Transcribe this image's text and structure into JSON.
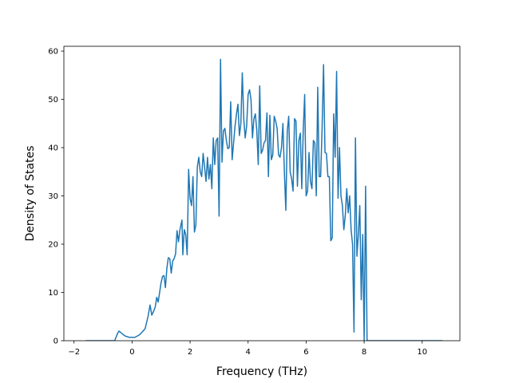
{
  "chart_data": {
    "type": "line",
    "xlabel": "Frequency (THz)",
    "ylabel": "Density of States",
    "xlim": [
      -2.35,
      11.3
    ],
    "ylim": [
      0,
      61
    ],
    "xticks": [
      -2,
      0,
      2,
      4,
      6,
      8,
      10
    ],
    "yticks": [
      0,
      10,
      20,
      30,
      40,
      50,
      60
    ],
    "x_tick_labels": [
      "−2",
      "0",
      "2",
      "4",
      "6",
      "8",
      "10"
    ],
    "y_tick_labels": [
      "0",
      "10",
      "20",
      "30",
      "40",
      "50",
      "60"
    ],
    "grid": false,
    "series": [
      {
        "color": "#1f77b4",
        "points": [
          [
            -1.6,
            0
          ],
          [
            -0.6,
            0
          ],
          [
            -0.5,
            1.5
          ],
          [
            -0.45,
            2.0
          ],
          [
            -0.35,
            1.5
          ],
          [
            -0.25,
            1.0
          ],
          [
            -0.1,
            0.7
          ],
          [
            0.1,
            0.7
          ],
          [
            0.25,
            1.2
          ],
          [
            0.35,
            1.8
          ],
          [
            0.45,
            2.5
          ],
          [
            0.55,
            5.0
          ],
          [
            0.62,
            7.4
          ],
          [
            0.68,
            5.3
          ],
          [
            0.75,
            6.2
          ],
          [
            0.8,
            7.0
          ],
          [
            0.85,
            9.0
          ],
          [
            0.9,
            8.0
          ],
          [
            1.0,
            12.0
          ],
          [
            1.05,
            13.3
          ],
          [
            1.1,
            13.5
          ],
          [
            1.15,
            11.0
          ],
          [
            1.2,
            15.0
          ],
          [
            1.25,
            17.2
          ],
          [
            1.3,
            17.0
          ],
          [
            1.35,
            14.0
          ],
          [
            1.4,
            16.5
          ],
          [
            1.45,
            17.0
          ],
          [
            1.5,
            18.0
          ],
          [
            1.55,
            22.8
          ],
          [
            1.6,
            20.5
          ],
          [
            1.65,
            23.0
          ],
          [
            1.72,
            25.0
          ],
          [
            1.75,
            17.8
          ],
          [
            1.8,
            23.0
          ],
          [
            1.85,
            22.0
          ],
          [
            1.9,
            17.8
          ],
          [
            1.95,
            35.5
          ],
          [
            2.0,
            29.5
          ],
          [
            2.05,
            28.0
          ],
          [
            2.1,
            34.0
          ],
          [
            2.15,
            22.5
          ],
          [
            2.2,
            24.0
          ],
          [
            2.25,
            36.0
          ],
          [
            2.3,
            38.0
          ],
          [
            2.35,
            35.0
          ],
          [
            2.4,
            34.0
          ],
          [
            2.45,
            38.8
          ],
          [
            2.5,
            36.0
          ],
          [
            2.55,
            33.0
          ],
          [
            2.6,
            38.0
          ],
          [
            2.65,
            33.5
          ],
          [
            2.7,
            36.5
          ],
          [
            2.75,
            31.5
          ],
          [
            2.8,
            42.0
          ],
          [
            2.85,
            36.5
          ],
          [
            2.9,
            41.5
          ],
          [
            2.95,
            42.0
          ],
          [
            3.0,
            25.8
          ],
          [
            3.05,
            58.3
          ],
          [
            3.1,
            37.0
          ],
          [
            3.15,
            43.5
          ],
          [
            3.2,
            44.0
          ],
          [
            3.25,
            41.5
          ],
          [
            3.3,
            39.8
          ],
          [
            3.35,
            40.0
          ],
          [
            3.4,
            49.5
          ],
          [
            3.45,
            37.5
          ],
          [
            3.5,
            41.0
          ],
          [
            3.55,
            44.5
          ],
          [
            3.6,
            47.0
          ],
          [
            3.65,
            49.0
          ],
          [
            3.7,
            42.5
          ],
          [
            3.75,
            45.0
          ],
          [
            3.8,
            55.5
          ],
          [
            3.85,
            46.0
          ],
          [
            3.9,
            42.0
          ],
          [
            3.95,
            44.5
          ],
          [
            4.0,
            51.0
          ],
          [
            4.05,
            52.0
          ],
          [
            4.1,
            50.0
          ],
          [
            4.15,
            42.0
          ],
          [
            4.2,
            46.0
          ],
          [
            4.25,
            47.0
          ],
          [
            4.3,
            43.5
          ],
          [
            4.35,
            36.5
          ],
          [
            4.4,
            52.8
          ],
          [
            4.45,
            38.8
          ],
          [
            4.5,
            39.5
          ],
          [
            4.55,
            41.0
          ],
          [
            4.6,
            41.5
          ],
          [
            4.65,
            47.2
          ],
          [
            4.7,
            34.0
          ],
          [
            4.75,
            46.7
          ],
          [
            4.8,
            37.5
          ],
          [
            4.85,
            38.5
          ],
          [
            4.9,
            46.5
          ],
          [
            4.95,
            45.5
          ],
          [
            5.0,
            44.0
          ],
          [
            5.05,
            38.5
          ],
          [
            5.1,
            38.0
          ],
          [
            5.15,
            40.0
          ],
          [
            5.2,
            45.0
          ],
          [
            5.25,
            35.0
          ],
          [
            5.3,
            27.0
          ],
          [
            5.35,
            43.5
          ],
          [
            5.4,
            46.5
          ],
          [
            5.45,
            35.0
          ],
          [
            5.5,
            33.5
          ],
          [
            5.55,
            31.0
          ],
          [
            5.6,
            46.0
          ],
          [
            5.65,
            45.5
          ],
          [
            5.7,
            32.0
          ],
          [
            5.75,
            41.5
          ],
          [
            5.8,
            43.0
          ],
          [
            5.85,
            31.5
          ],
          [
            5.9,
            43.5
          ],
          [
            5.95,
            51.0
          ],
          [
            6.0,
            30.0
          ],
          [
            6.05,
            31.0
          ],
          [
            6.1,
            39.0
          ],
          [
            6.15,
            33.0
          ],
          [
            6.2,
            31.5
          ],
          [
            6.25,
            41.5
          ],
          [
            6.3,
            41.0
          ],
          [
            6.35,
            30.0
          ],
          [
            6.4,
            52.5
          ],
          [
            6.45,
            34.0
          ],
          [
            6.5,
            34.0
          ],
          [
            6.55,
            44.0
          ],
          [
            6.6,
            57.2
          ],
          [
            6.65,
            39.0
          ],
          [
            6.7,
            38.8
          ],
          [
            6.75,
            34.0
          ],
          [
            6.8,
            34.0
          ],
          [
            6.85,
            20.7
          ],
          [
            6.9,
            21.3
          ],
          [
            6.95,
            47.0
          ],
          [
            7.0,
            38.0
          ],
          [
            7.05,
            55.8
          ],
          [
            7.1,
            29.5
          ],
          [
            7.15,
            40.0
          ],
          [
            7.2,
            30.0
          ],
          [
            7.25,
            28.0
          ],
          [
            7.3,
            23.0
          ],
          [
            7.35,
            26.0
          ],
          [
            7.4,
            31.5
          ],
          [
            7.45,
            26.5
          ],
          [
            7.5,
            30.0
          ],
          [
            7.55,
            23.0
          ],
          [
            7.6,
            20.0
          ],
          [
            7.65,
            1.8
          ],
          [
            7.7,
            42.0
          ],
          [
            7.75,
            17.5
          ],
          [
            7.8,
            22.0
          ],
          [
            7.85,
            28.0
          ],
          [
            7.9,
            8.5
          ],
          [
            7.95,
            22.0
          ],
          [
            8.0,
            0
          ],
          [
            8.05,
            32.0
          ],
          [
            8.1,
            0
          ],
          [
            8.15,
            0
          ],
          [
            10.7,
            0
          ]
        ]
      }
    ]
  }
}
